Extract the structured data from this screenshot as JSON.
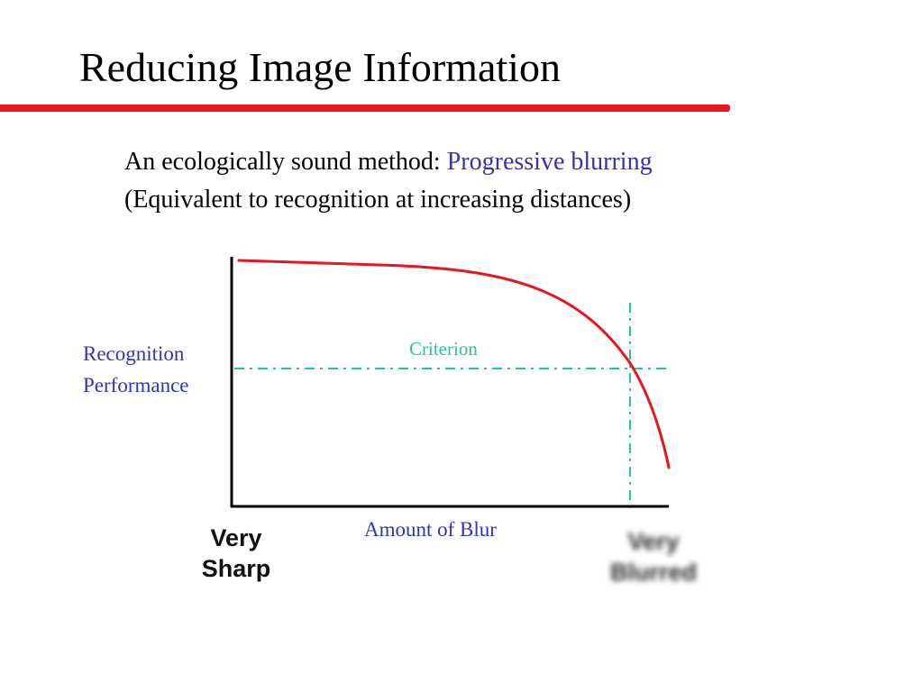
{
  "slide": {
    "title": "Reducing Image Information",
    "line1_prefix": "An ecologically sound method: ",
    "line1_highlight": "Progressive blurring",
    "line2": "(Equivalent to recognition at increasing distances)"
  },
  "diagram": {
    "y_axis_label_line1": "Recognition",
    "y_axis_label_line2": "Performance",
    "x_axis_label": "Amount of Blur",
    "criterion_label": "Criterion",
    "x_start_label_line1": "Very",
    "x_start_label_line2": "Sharp",
    "x_end_label_line1": "Very",
    "x_end_label_line2": "Blurred"
  },
  "colors": {
    "accent_red": "#e8141e",
    "label_blue": "#3333b3",
    "criterion_green": "#2cc29a",
    "curve_red": "#e8141e"
  }
}
